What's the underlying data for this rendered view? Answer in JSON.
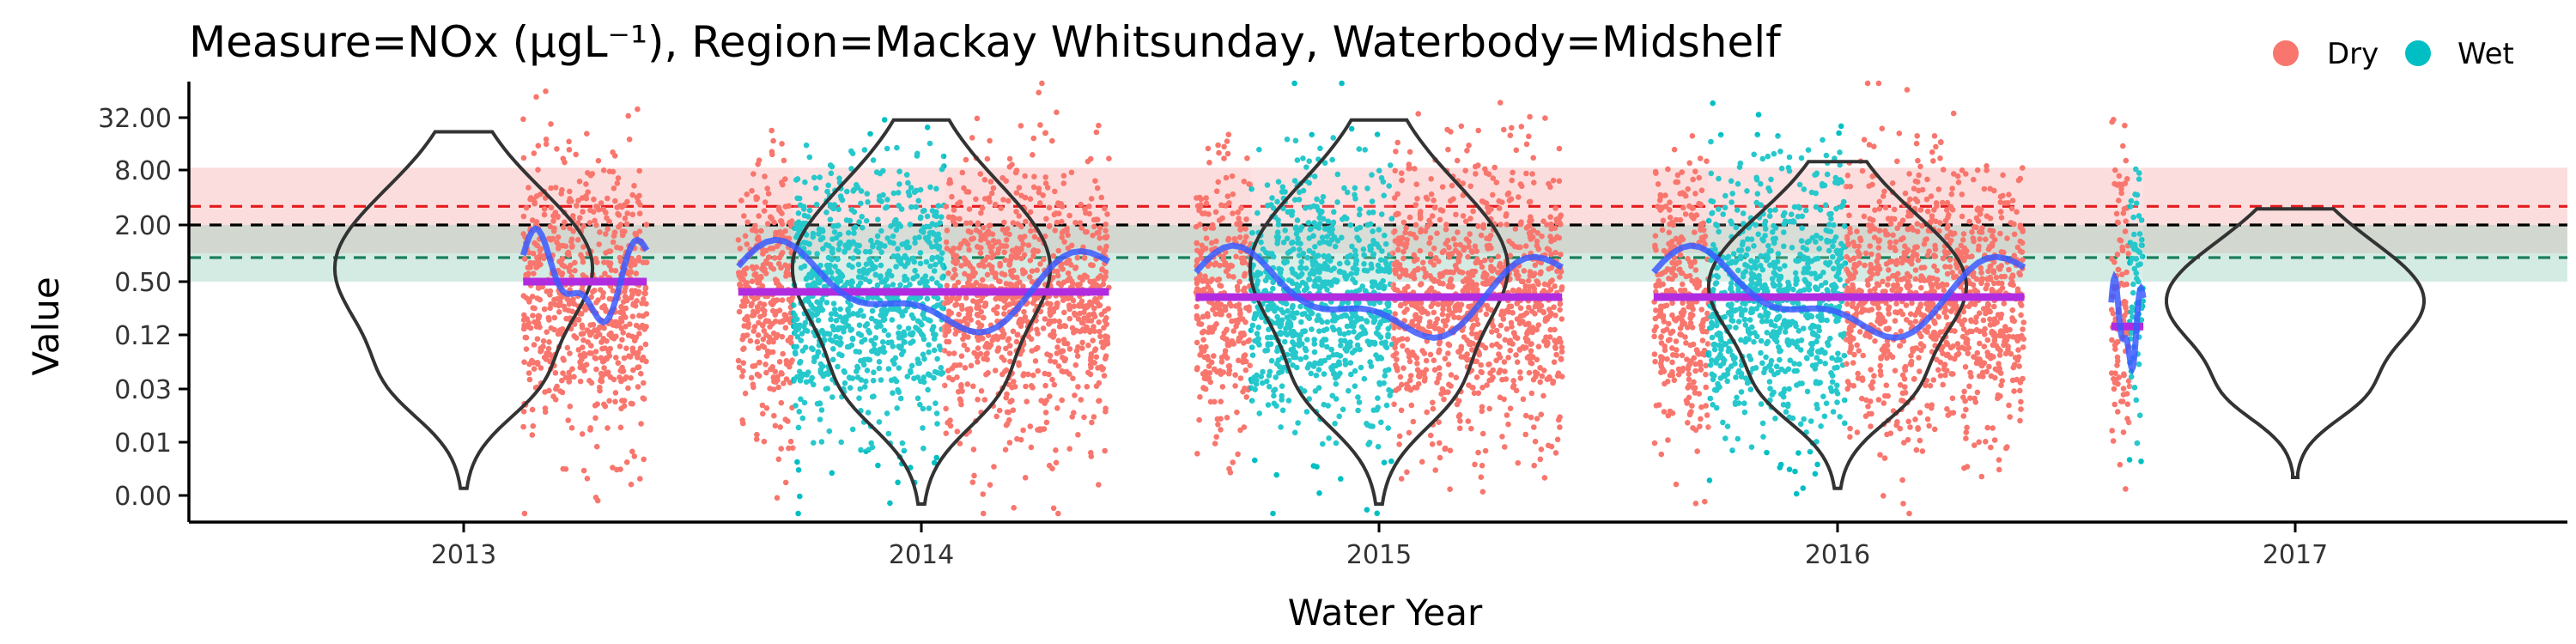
{
  "chart_data": {
    "type": "scatter",
    "title": "Measure=NOx (µgL⁻¹), Region=Mackay Whitsunday, Waterbody=Midshelf",
    "xlabel": "Water Year",
    "ylabel": "Value",
    "x_ticks": [
      "2013",
      "2014",
      "2015",
      "2016",
      "2017"
    ],
    "y_ticks": [
      "0.00",
      "0.01",
      "0.03",
      "0.12",
      "0.50",
      "2.00",
      "8.00",
      "32.00"
    ],
    "y_scale": "log4",
    "y_tick_values": [
      0.0,
      0.01,
      0.03,
      0.12,
      0.5,
      2.0,
      8.0,
      32.0
    ],
    "legend": {
      "position": "top-right",
      "items": [
        {
          "label": "Dry",
          "color": "#F8766D"
        },
        {
          "label": "Wet",
          "color": "#00BFC4"
        }
      ]
    },
    "reference_lines": [
      {
        "value": 3.2,
        "color": "#E41A1C",
        "style": "dashed",
        "band": [
          1.0,
          8.5
        ],
        "band_color": "#F8B4B4"
      },
      {
        "value": 2.0,
        "color": "#000000",
        "style": "dashed"
      },
      {
        "value": 0.9,
        "color": "#1B7F5B",
        "style": "dashed",
        "band": [
          0.5,
          2.0
        ],
        "band_color": "#9FD3C0"
      }
    ],
    "water_years": [
      {
        "year": "2013",
        "annual_median": 0.5,
        "season_periods": [
          {
            "season": "Dry",
            "start": 2013.13,
            "end": 2013.4
          }
        ]
      },
      {
        "year": "2014",
        "annual_median": 0.38,
        "season_periods": [
          {
            "season": "Dry",
            "start": 2013.6,
            "end": 2013.72
          },
          {
            "season": "Wet",
            "start": 2013.72,
            "end": 2014.05
          },
          {
            "season": "Dry",
            "start": 2014.05,
            "end": 2014.41
          }
        ]
      },
      {
        "year": "2015",
        "annual_median": 0.33,
        "season_periods": [
          {
            "season": "Dry",
            "start": 2014.6,
            "end": 2014.72
          },
          {
            "season": "Wet",
            "start": 2014.72,
            "end": 2015.03
          },
          {
            "season": "Dry",
            "start": 2015.03,
            "end": 2015.4
          }
        ]
      },
      {
        "year": "2016",
        "annual_median": 0.33,
        "season_periods": [
          {
            "season": "Dry",
            "start": 2015.6,
            "end": 2015.72
          },
          {
            "season": "Wet",
            "start": 2015.72,
            "end": 2016.02
          },
          {
            "season": "Dry",
            "start": 2016.02,
            "end": 2016.41
          }
        ]
      },
      {
        "year": "2017",
        "annual_median": 0.15,
        "season_periods": [
          {
            "season": "Dry",
            "start": 2016.6,
            "end": 2016.64
          },
          {
            "season": "Wet",
            "start": 2016.64,
            "end": 2016.67
          }
        ]
      }
    ],
    "violins": [
      {
        "year": "2013",
        "y_range": [
          0.003,
          22.0
        ],
        "mode": 0.7
      },
      {
        "year": "2014",
        "y_range": [
          0.002,
          30.0
        ],
        "mode": 0.7
      },
      {
        "year": "2015",
        "y_range": [
          0.002,
          30.0
        ],
        "mode": 0.7
      },
      {
        "year": "2016",
        "y_range": [
          0.003,
          10.0
        ],
        "mode": 0.45
      },
      {
        "year": "2017",
        "y_range": [
          0.004,
          3.0
        ],
        "mode": 0.3
      }
    ],
    "colors": {
      "dry": "#F8766D",
      "wet": "#00BFC4",
      "trend": "#3B5BFF",
      "median": "#B12CE0"
    }
  }
}
